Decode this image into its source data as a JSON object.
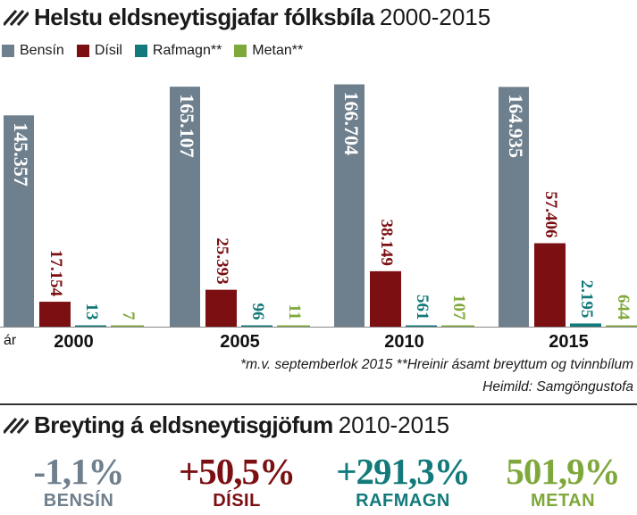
{
  "title": {
    "bold": "Helstu eldsneytisgjafar fólksbíla",
    "years": "2000-2015"
  },
  "legend": [
    {
      "label": "Bensín",
      "color": "#6e7f8d"
    },
    {
      "label": "Dísil",
      "color": "#7b0f12"
    },
    {
      "label": "Rafmagn**",
      "color": "#127a7a"
    },
    {
      "label": "Metan**",
      "color": "#7fa83c"
    }
  ],
  "chart_data": {
    "type": "bar",
    "categories": [
      "2000",
      "2005",
      "2010",
      "2015"
    ],
    "series": [
      {
        "name": "Bensín",
        "color": "#6e7f8d",
        "values": [
          145357,
          165107,
          166704,
          164935
        ],
        "labels": [
          "145.357",
          "165.107",
          "166.704",
          "164.935"
        ]
      },
      {
        "name": "Dísil",
        "color": "#7b0f12",
        "values": [
          17154,
          25393,
          38149,
          57406
        ],
        "labels": [
          "17.154",
          "25.393",
          "38.149",
          "57.406"
        ]
      },
      {
        "name": "Rafmagn**",
        "color": "#127a7a",
        "values": [
          13,
          96,
          561,
          2195
        ],
        "labels": [
          "13",
          "96",
          "561",
          "2.195"
        ]
      },
      {
        "name": "Metan**",
        "color": "#7fa83c",
        "values": [
          7,
          11,
          107,
          644
        ],
        "labels": [
          "7",
          "11",
          "107",
          "644"
        ]
      }
    ],
    "xlabel": "ár",
    "ylim": [
      0,
      175000
    ]
  },
  "notes": {
    "footnote": "*m.v. septemberlok 2015 **Hreinir ásamt breyttum og tvinnbílum",
    "source": "Heimild: Samgöngustofa"
  },
  "change": {
    "title_bold": "Breyting á eldsneytisgjöfum",
    "years": "2010-2015",
    "items": [
      {
        "pct": "-1,1%",
        "name": "BENSÍN",
        "color": "#6e7f8d"
      },
      {
        "pct": "+50,5%",
        "name": "DÍSIL",
        "color": "#7b0f12"
      },
      {
        "pct": "+291,3%",
        "name": "RAFMAGN",
        "color": "#127a7a"
      },
      {
        "pct": "501,9%",
        "name": "METAN",
        "color": "#7fa83c"
      }
    ]
  }
}
